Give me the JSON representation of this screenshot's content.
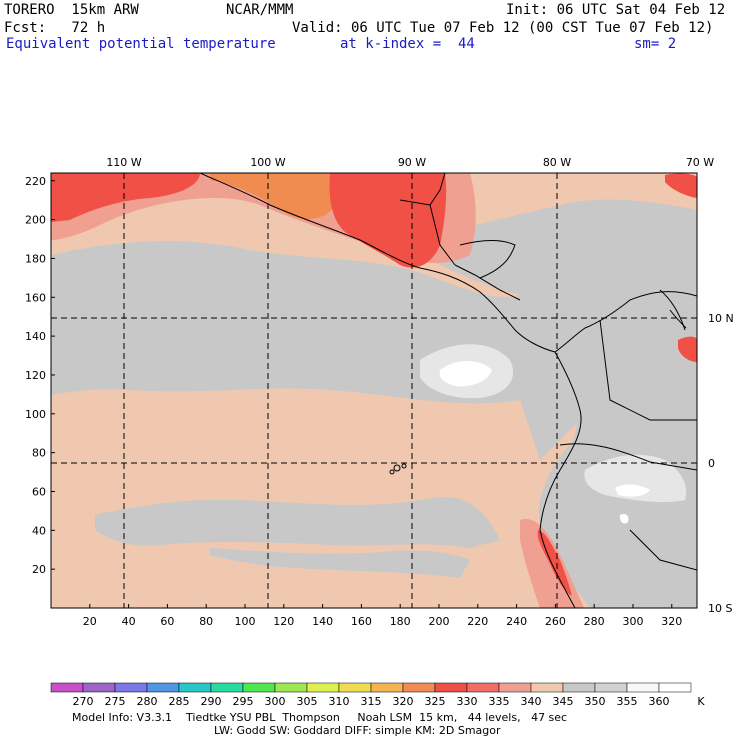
{
  "header": {
    "model": "TORERO  15km ARW",
    "org": "NCAR/MMM",
    "init": "Init: 06 UTC Sat 04 Feb 12",
    "fcst": "Fcst:   72 h",
    "valid": "Valid: 06 UTC Tue 07 Feb 12 (00 CST Tue 07 Feb 12)",
    "field": "Equivalent potential temperature",
    "level": "at k-index =  44",
    "smooth": "sm= 2"
  },
  "map": {
    "lon_labels": [
      "110 W",
      "100 W",
      "90 W",
      "80 W",
      "70 W"
    ],
    "lat_labels": [
      "10 N",
      "0",
      "10 S"
    ],
    "y_ticks": [
      "220",
      "200",
      "180",
      "160",
      "140",
      "120",
      "100",
      "80",
      "60",
      "40",
      "20"
    ],
    "x_ticks": [
      "20",
      "40",
      "60",
      "80",
      "100",
      "120",
      "140",
      "160",
      "180",
      "200",
      "220",
      "240",
      "260",
      "280",
      "300",
      "320"
    ],
    "land_color": "#c8c8c8",
    "ocean_color": "#f0c8b0"
  },
  "colorbar": {
    "unit": "K",
    "labels": [
      "270",
      "275",
      "280",
      "285",
      "290",
      "295",
      "300",
      "305",
      "310",
      "315",
      "320",
      "325",
      "330",
      "335",
      "340",
      "345",
      "350",
      "355",
      "360"
    ],
    "colors": [
      "#c850c8",
      "#a064c8",
      "#7878e6",
      "#5096e6",
      "#28c8c8",
      "#28dca0",
      "#50e650",
      "#a0e650",
      "#dcf050",
      "#f0dc50",
      "#f5b450",
      "#f08c50",
      "#f05046",
      "#f06e64",
      "#f0a090",
      "#f0c8b0",
      "#c8c8c8",
      "#d2d2d2",
      "#f8f8f8",
      "#ffffff"
    ]
  },
  "footer": {
    "line1": "Model Info: V3.3.1    Tiedtke YSU PBL  Thompson     Noah LSM  15 km,   44 levels,   47 sec",
    "line2": "LW: Godd SW: Goddard DIFF: simple KM: 2D Smagor"
  }
}
